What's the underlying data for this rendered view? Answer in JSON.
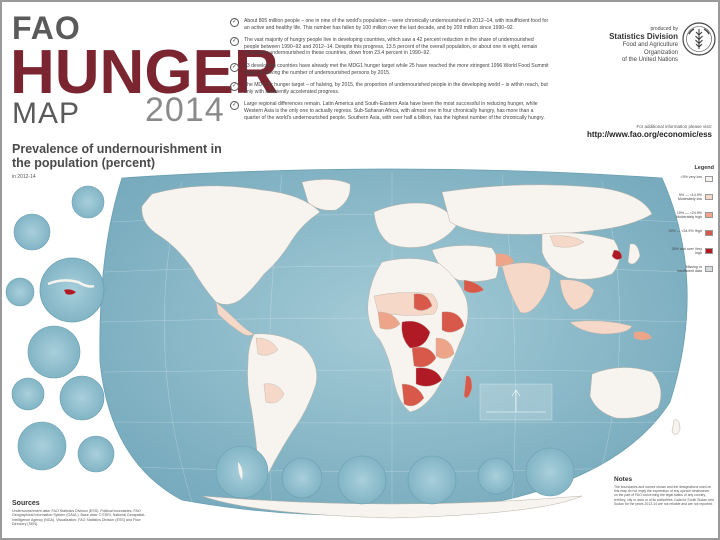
{
  "header": {
    "line1": "FAO",
    "line2": "HUNGER",
    "line3": "MAP",
    "year": "2014"
  },
  "facts": [
    "About 805 million people – one in nine of the world's population – were chronically undernourished in 2012–14, with insufficient food for an active and healthy life. This number has fallen by 100 million over the last decade, and by 209 million since 1990–92.",
    "The vast majority of hungry people live in developing countries, which saw a 42 percent reduction in the share of undernourished people between 1990–92 and 2012–14. Despite this progress, 13.5 percent of the overall population, or about one in eight, remain chronically undernourished in these countries, down from 23.4 percent in 1990–92.",
    "63 developing countries have already met the MDG1 hunger target while 25 have reached the more stringent 1996 World Food Summit target of halving the number of undernourished persons by 2015.",
    "The MDG 1c hunger target – of halving, by 2015, the proportion of undernourished people in the developing world – is within reach, but only with sufficiently accelerated progress.",
    "Large regional differences remain. Latin America and South-Eastern Asia have been the most successful in reducing hunger, while Western Asia is the only one to actually regress. Sub-Saharan Africa, with almost one in four chronically hungry, has more than a quarter of the world's undernourished people. Southern Asia, with over half a billion, has the highest number of the chronically hungry."
  ],
  "producer": {
    "produced_by": "produced by",
    "division": "Statistics Division",
    "org_line1": "Food and Agriculture Organization",
    "org_line2": "of the United Nations"
  },
  "info": {
    "label": "For additional information please visit:",
    "url": "http://www.fao.org/economic/ess"
  },
  "map": {
    "title": "Prevalence of undernourishment in the population (percent)",
    "subtitle": "in 2012-14"
  },
  "legend": {
    "title": "Legend",
    "items": [
      {
        "label": "<5% very low",
        "color": "#f7f3ee"
      },
      {
        "label": "5% — <14.9% Moderately low",
        "color": "#f6d8c8"
      },
      {
        "label": "15% — <24.9% Moderately high",
        "color": "#eea488"
      },
      {
        "label": "25% — <34.9% High",
        "color": "#d8584a"
      },
      {
        "label": "35% and over Very high",
        "color": "#b01a24"
      },
      {
        "label": "Missing or insufficient data",
        "color": "#d7dcde"
      }
    ]
  },
  "sources": {
    "title": "Sources",
    "text": "Undernourishment data: FAO Statistics Division (ESS). Political boundaries: FAO Geographical Information System (GAUL). Base data: © ESRI, National Geospatial-Intelligence Agency (NGA), Visualization: FAO Statistics Division (ESS) and Flow Directory (SEN)."
  },
  "notes": {
    "title": "Notes",
    "text": "The boundaries and names shown and the designations used on this map do not imply the expression of any opinion whatsoever on the part of FAO concerning the legal status of any country, territory, city or area or of its authorities. Data for South Sudan and Sudan for the years 2012-14 are not reliable and are not reported."
  },
  "colors": {
    "ocean": "#7fb3c4",
    "ocean_light": "#9cc6d3",
    "land_default": "#f7f3ee",
    "title_red": "#7a2530"
  }
}
